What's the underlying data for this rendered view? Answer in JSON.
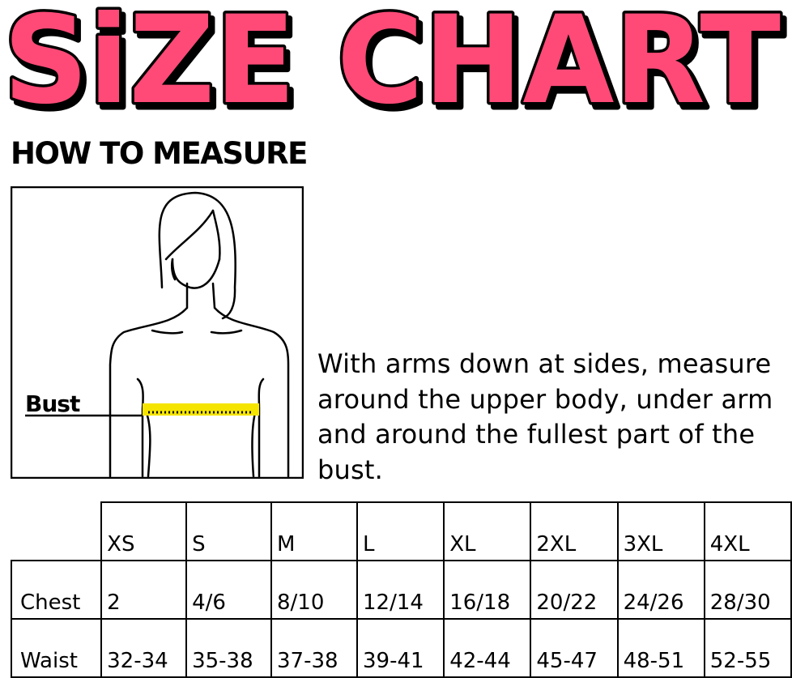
{
  "title": "SiZE CHART",
  "title_color": "#ff4a77",
  "how_to_measure": "HOW TO MEASURE",
  "figure": {
    "label": "Bust",
    "tape_color": "#f5e400"
  },
  "instructions": "With arms down at sides, measure around the upper body, under arm and around the fullest part of the bust.",
  "table": {
    "sizes": [
      "XS",
      "S",
      "M",
      "L",
      "XL",
      "2XL",
      "3XL",
      "4XL"
    ],
    "rows": [
      {
        "label": "Chest",
        "values": [
          "2",
          "4/6",
          "8/10",
          "12/14",
          "16/18",
          "20/22",
          "24/26",
          "28/30"
        ]
      },
      {
        "label": "Waist",
        "values": [
          "32-34",
          "35-38",
          "37-38",
          "39-41",
          "42-44",
          "45-47",
          "48-51",
          "52-55"
        ]
      }
    ]
  }
}
